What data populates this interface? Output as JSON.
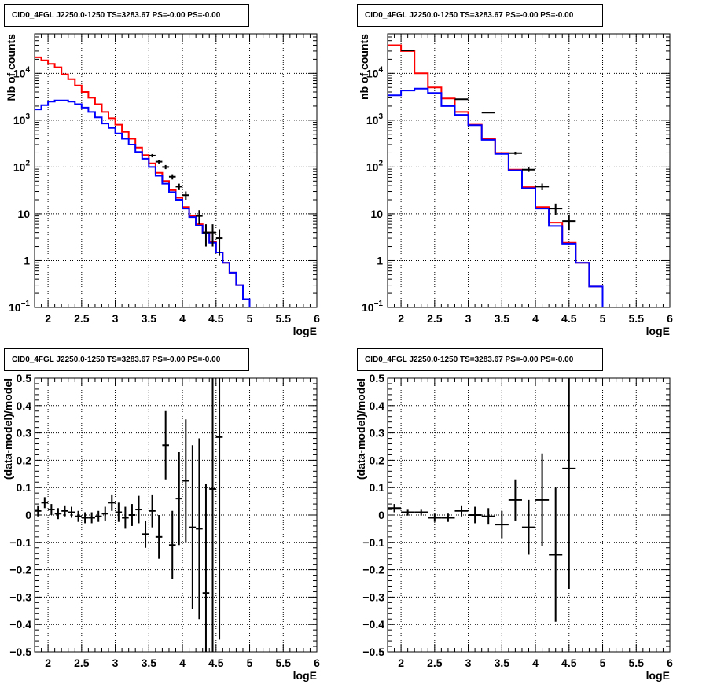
{
  "colors": {
    "data": "#000000",
    "model_total": "#ff0000",
    "model_source": "#0000ff"
  },
  "chart_data": [
    {
      "type": "line",
      "title": "CID0_4FGL J2250.0-1250 TS=3283.67 PS=-0.00 PS=-0.00",
      "xlabel": "logE",
      "ylabel": "Nb of counts",
      "xlim": [
        1.8,
        6.0
      ],
      "ylim": [
        0.1,
        70000
      ],
      "yscale": "log",
      "grid": true,
      "xticks": [
        "2",
        "2.5",
        "3",
        "3.5",
        "4",
        "4.5",
        "5",
        "5.5",
        "6"
      ],
      "yticks": [
        "10^-1",
        "1",
        "10",
        "10^2",
        "10^3",
        "10^4"
      ],
      "bin_width": 0.1,
      "bin_edges_start": 1.8,
      "series": [
        {
          "role": "model_total",
          "values": [
            22000,
            19000,
            16000,
            13500,
            9500,
            7500,
            5500,
            4000,
            3000,
            2200,
            1500,
            1100,
            800,
            560,
            400,
            260,
            180,
            120,
            75,
            50,
            32,
            22,
            14,
            9,
            6,
            4,
            2.5,
            1.5,
            0.9,
            0.55,
            0.3,
            0.15,
            0.1,
            0.1,
            0.1,
            0.1,
            0.1,
            0.1,
            0.1,
            0.1,
            0.1,
            0.1
          ]
        },
        {
          "role": "model_source",
          "values": [
            1700,
            2100,
            2500,
            2650,
            2650,
            2500,
            2200,
            1850,
            1500,
            1150,
            850,
            680,
            520,
            400,
            300,
            210,
            150,
            100,
            65,
            44,
            29,
            20,
            13,
            8.5,
            5.6,
            3.8,
            2.4,
            1.5,
            0.9,
            0.55,
            0.3,
            0.15,
            0.1,
            0.1,
            0.1,
            0.1,
            0.1,
            0.1,
            0.1,
            0.1,
            0.1,
            0.1
          ]
        },
        {
          "role": "data",
          "points": [
            [
              3.55,
              175,
              14
            ],
            [
              3.65,
              130,
              11
            ],
            [
              3.75,
              100,
              10
            ],
            [
              3.85,
              62,
              8
            ],
            [
              3.95,
              38,
              6
            ],
            [
              4.05,
              25,
              5
            ],
            [
              4.25,
              9,
              3
            ],
            [
              4.35,
              4,
              2
            ],
            [
              4.45,
              4,
              2
            ],
            [
              4.55,
              3,
              1.7
            ]
          ]
        }
      ]
    },
    {
      "type": "line",
      "title": "CID0_4FGL J2250.0-1250 TS=3283.67 PS=-0.00 PS=-0.00",
      "xlabel": "logE",
      "ylabel": "nb of counts",
      "xlim": [
        1.8,
        6.0
      ],
      "ylim": [
        0.1,
        70000
      ],
      "yscale": "log",
      "grid": true,
      "xticks": [
        "2",
        "2.5",
        "3",
        "3.5",
        "4",
        "4.5",
        "5",
        "5.5",
        "6"
      ],
      "yticks": [
        "10^-1",
        "1",
        "10",
        "10^2",
        "10^3",
        "10^4"
      ],
      "bin_width": 0.2,
      "bin_edges_start": 1.8,
      "series": [
        {
          "role": "model_total",
          "values": [
            40000,
            30000,
            10000,
            5000,
            2900,
            1500,
            800,
            400,
            200,
            88,
            37,
            14,
            6.5,
            2.4,
            0.9,
            0.28,
            0.1,
            0.1,
            0.1,
            0.1,
            0.1
          ]
        },
        {
          "role": "model_source",
          "values": [
            3400,
            4300,
            4700,
            3800,
            2000,
            1300,
            780,
            380,
            190,
            85,
            35,
            13,
            5.5,
            2.3,
            0.9,
            0.28,
            0.1,
            0.1,
            0.1,
            0.1,
            0.1
          ]
        },
        {
          "role": "data",
          "points": [
            [
              2.1,
              31000,
              176
            ],
            [
              2.9,
              2800,
              53
            ],
            [
              3.3,
              1450,
              38
            ],
            [
              3.7,
              198,
              14
            ],
            [
              3.9,
              88,
              9.4
            ],
            [
              4.1,
              38,
              6.2
            ],
            [
              4.3,
              13,
              3.6
            ],
            [
              4.5,
              7,
              2.6
            ]
          ]
        }
      ]
    },
    {
      "type": "scatter",
      "title": "CID0_4FGL J2250.0-1250 TS=3283.67 PS=-0.00 PS=-0.00",
      "xlabel": "logE",
      "ylabel": "(data-model)/model",
      "xlim": [
        1.8,
        6.0
      ],
      "ylim": [
        -0.5,
        0.5
      ],
      "grid": true,
      "xticks": [
        "2",
        "2.5",
        "3",
        "3.5",
        "4",
        "4.5",
        "5",
        "5.5",
        "6"
      ],
      "yticks": [
        "−0.5",
        "−0.4",
        "−0.3",
        "−0.2",
        "−0.1",
        "0",
        "0.1",
        "0.2",
        "0.3",
        "0.4",
        "0.5"
      ],
      "x_half_width": 0.05,
      "points": [
        [
          1.85,
          0.015,
          0.02
        ],
        [
          1.95,
          0.045,
          0.02
        ],
        [
          2.05,
          0.02,
          0.02
        ],
        [
          2.15,
          0.005,
          0.02
        ],
        [
          2.25,
          0.015,
          0.02
        ],
        [
          2.35,
          0.01,
          0.02
        ],
        [
          2.45,
          -0.005,
          0.02
        ],
        [
          2.55,
          -0.01,
          0.02
        ],
        [
          2.65,
          -0.01,
          0.02
        ],
        [
          2.75,
          -0.005,
          0.02
        ],
        [
          2.85,
          0.005,
          0.025
        ],
        [
          2.95,
          0.045,
          0.03
        ],
        [
          3.05,
          0.01,
          0.035
        ],
        [
          3.15,
          -0.01,
          0.04
        ],
        [
          3.25,
          0.0,
          0.04
        ],
        [
          3.35,
          0.02,
          0.05
        ],
        [
          3.45,
          -0.07,
          0.05
        ],
        [
          3.55,
          0.015,
          0.06
        ],
        [
          3.65,
          -0.08,
          0.08
        ],
        [
          3.75,
          0.255,
          0.125
        ],
        [
          3.85,
          -0.11,
          0.125
        ],
        [
          3.95,
          0.06,
          0.17
        ],
        [
          4.05,
          0.125,
          0.225
        ],
        [
          4.15,
          -0.045,
          0.3
        ],
        [
          4.25,
          -0.05,
          0.33
        ],
        [
          4.35,
          -0.285,
          0.4
        ],
        [
          4.45,
          0.095,
          0.6
        ],
        [
          4.55,
          0.285,
          0.74
        ]
      ]
    },
    {
      "type": "scatter",
      "title": "CID0_4FGL J2250.0-1250 TS=3283.67 PS=-0.00 PS=-0.00",
      "xlabel": "logE",
      "ylabel": "(data-model)/model",
      "xlim": [
        1.8,
        6.0
      ],
      "ylim": [
        -0.5,
        0.5
      ],
      "grid": true,
      "xticks": [
        "2",
        "2.5",
        "3",
        "3.5",
        "4",
        "4.5",
        "5",
        "5.5",
        "6"
      ],
      "yticks": [
        "−0.5",
        "−0.4",
        "−0.3",
        "−0.2",
        "−0.1",
        "0",
        "0.1",
        "0.2",
        "0.3",
        "0.4",
        "0.5"
      ],
      "x_half_width": 0.1,
      "points": [
        [
          1.9,
          0.025,
          0.015
        ],
        [
          2.1,
          0.01,
          0.012
        ],
        [
          2.3,
          0.01,
          0.012
        ],
        [
          2.5,
          -0.01,
          0.015
        ],
        [
          2.7,
          -0.01,
          0.015
        ],
        [
          2.9,
          0.015,
          0.02
        ],
        [
          3.1,
          0.0,
          0.03
        ],
        [
          3.3,
          -0.005,
          0.03
        ],
        [
          3.5,
          -0.035,
          0.05
        ],
        [
          3.7,
          0.055,
          0.075
        ],
        [
          3.9,
          -0.045,
          0.1
        ],
        [
          4.1,
          0.055,
          0.17
        ],
        [
          4.3,
          -0.145,
          0.245
        ],
        [
          4.5,
          0.17,
          0.44
        ]
      ]
    }
  ]
}
